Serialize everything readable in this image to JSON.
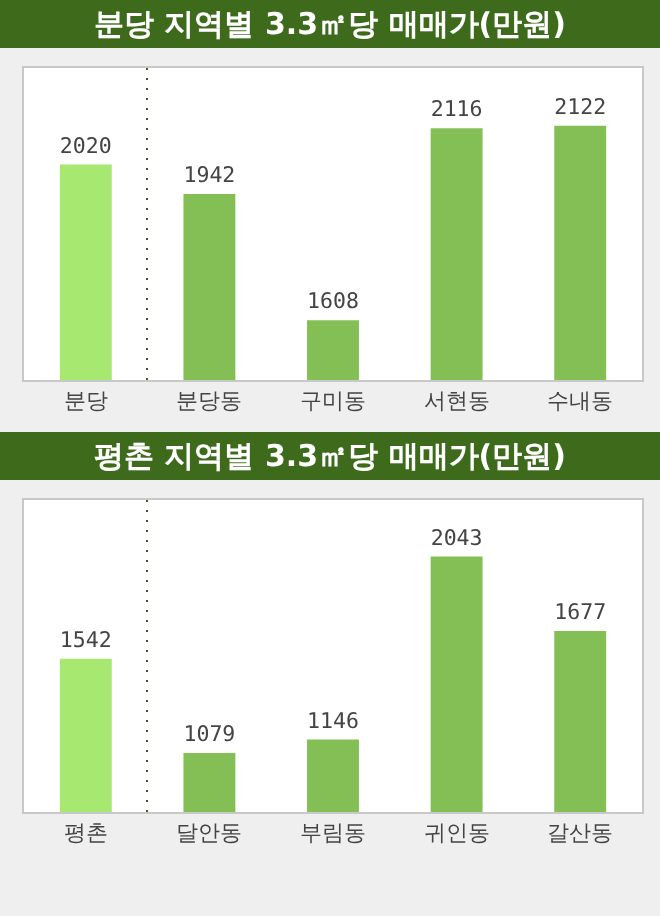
{
  "chart_data": [
    {
      "type": "bar",
      "title": "분당 지역별 3.3㎡당 매매가(만원)",
      "categories": [
        "분당",
        "분당동",
        "구미동",
        "서현동",
        "수내동"
      ],
      "values": [
        2020,
        1942,
        1608,
        2116,
        2122
      ],
      "colors": [
        "#a6e870",
        "#84bf56",
        "#84bf56",
        "#84bf56",
        "#84bf56"
      ],
      "ylim": [
        1450,
        2275
      ],
      "data_labels": true
    },
    {
      "type": "bar",
      "title": "평촌 지역별 3.3㎡당 매매가(만원)",
      "categories": [
        "평촌",
        "달안동",
        "부림동",
        "귀인동",
        "갈산동"
      ],
      "values": [
        1542,
        1079,
        1146,
        2043,
        1677
      ],
      "colors": [
        "#a6e870",
        "#84bf56",
        "#84bf56",
        "#84bf56",
        "#84bf56"
      ],
      "ylim": [
        790,
        2320
      ],
      "data_labels": true
    }
  ]
}
